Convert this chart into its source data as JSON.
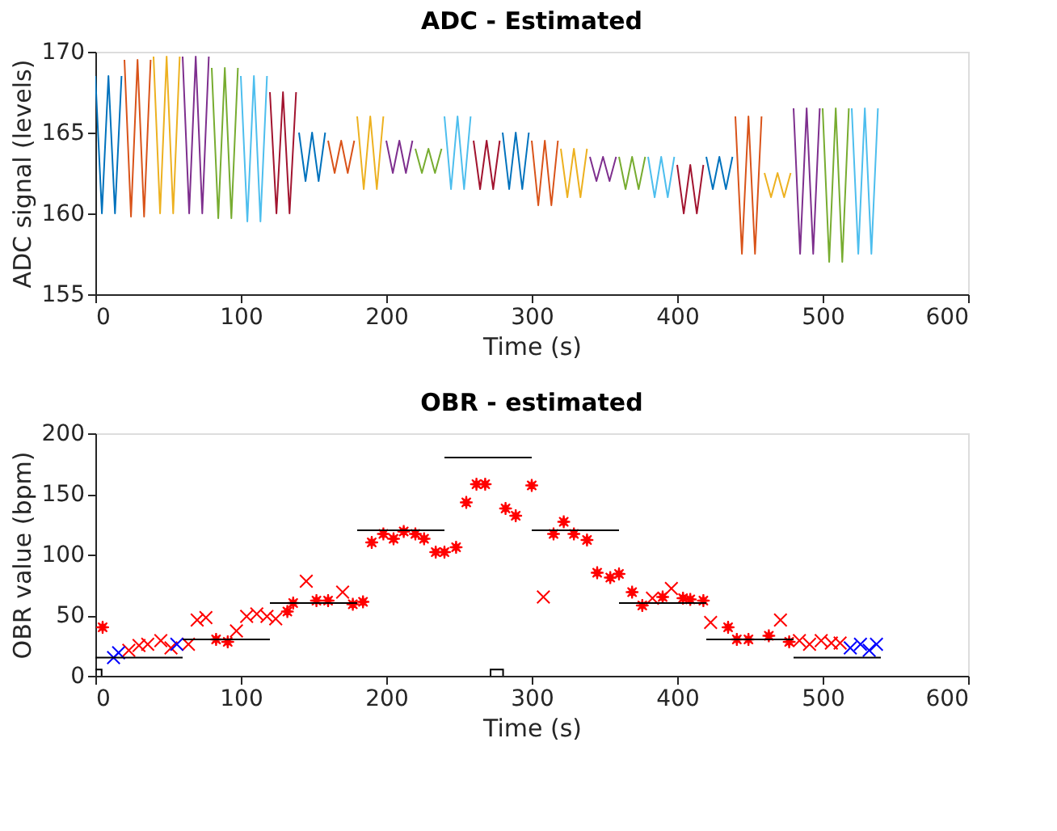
{
  "chart_data": [
    {
      "type": "line",
      "title": "ADC - Estimated",
      "xlabel": "Time (s)",
      "ylabel": "ADC signal (levels)",
      "xlim": [
        0,
        600
      ],
      "xticks": [
        0,
        100,
        200,
        300,
        400,
        500,
        600
      ],
      "ylim": [
        155,
        170
      ],
      "yticks": [
        155,
        160,
        165,
        170
      ],
      "grid": false,
      "line_style": "solid",
      "series": [
        {
          "color": "#0072bd",
          "x": [
            0,
            4.5,
            9,
            13.5,
            18
          ],
          "values": [
            168.5,
            160,
            168.5,
            160,
            168.5
          ]
        },
        {
          "color": "#d95319",
          "x": [
            20,
            24.5,
            29,
            33.5,
            38
          ],
          "values": [
            169.5,
            159.8,
            169.5,
            159.8,
            169.5
          ]
        },
        {
          "color": "#edb120",
          "x": [
            40,
            44.5,
            49,
            53.5,
            58
          ],
          "values": [
            169.7,
            160,
            169.7,
            160,
            169.7
          ]
        },
        {
          "color": "#7e2f8e",
          "x": [
            60,
            64.5,
            69,
            73.5,
            78
          ],
          "values": [
            169.7,
            160,
            169.7,
            160,
            169.7
          ]
        },
        {
          "color": "#77ac30",
          "x": [
            80,
            84.5,
            89,
            93.5,
            98
          ],
          "values": [
            169,
            159.7,
            169,
            159.7,
            169
          ]
        },
        {
          "color": "#4dbeee",
          "x": [
            100,
            104.5,
            109,
            113.5,
            118
          ],
          "values": [
            168.5,
            159.5,
            168.5,
            159.5,
            168.5
          ]
        },
        {
          "color": "#a2142f",
          "x": [
            120,
            124.5,
            129,
            133.5,
            138
          ],
          "values": [
            167.5,
            160,
            167.5,
            160,
            167.5
          ]
        },
        {
          "color": "#0072bd",
          "x": [
            140,
            144.5,
            149,
            153.5,
            158
          ],
          "values": [
            165,
            162,
            165,
            162,
            165
          ]
        },
        {
          "color": "#d95319",
          "x": [
            160,
            164.5,
            169,
            173.5,
            178
          ],
          "values": [
            164.5,
            162.5,
            164.5,
            162.5,
            164.5
          ]
        },
        {
          "color": "#edb120",
          "x": [
            180,
            184.5,
            189,
            193.5,
            198
          ],
          "values": [
            166,
            161.5,
            166,
            161.5,
            166
          ]
        },
        {
          "color": "#7e2f8e",
          "x": [
            200,
            204.5,
            209,
            213.5,
            218
          ],
          "values": [
            164.5,
            162.5,
            164.5,
            162.5,
            164.5
          ]
        },
        {
          "color": "#77ac30",
          "x": [
            220,
            224.5,
            229,
            233.5,
            238
          ],
          "values": [
            164,
            162.5,
            164,
            162.5,
            164
          ]
        },
        {
          "color": "#4dbeee",
          "x": [
            240,
            244.5,
            249,
            253.5,
            258
          ],
          "values": [
            166,
            161.5,
            166,
            161.5,
            166
          ]
        },
        {
          "color": "#a2142f",
          "x": [
            260,
            264.5,
            269,
            273.5,
            278
          ],
          "values": [
            164.5,
            161.5,
            164.5,
            161.5,
            164.5
          ]
        },
        {
          "color": "#0072bd",
          "x": [
            280,
            284.5,
            289,
            293.5,
            298
          ],
          "values": [
            165,
            161.5,
            165,
            161.5,
            165
          ]
        },
        {
          "color": "#d95319",
          "x": [
            300,
            304.5,
            309,
            313.5,
            318
          ],
          "values": [
            164.5,
            160.5,
            164.5,
            160.5,
            164.5
          ]
        },
        {
          "color": "#edb120",
          "x": [
            320,
            324.5,
            329,
            333.5,
            338
          ],
          "values": [
            164,
            161,
            164,
            161,
            164
          ]
        },
        {
          "color": "#7e2f8e",
          "x": [
            340,
            344.5,
            349,
            353.5,
            358
          ],
          "values": [
            163.5,
            162,
            163.5,
            162,
            163.5
          ]
        },
        {
          "color": "#77ac30",
          "x": [
            360,
            364.5,
            369,
            373.5,
            378
          ],
          "values": [
            163.5,
            161.5,
            163.5,
            161.5,
            163.5
          ]
        },
        {
          "color": "#4dbeee",
          "x": [
            380,
            384.5,
            389,
            393.5,
            398
          ],
          "values": [
            163.5,
            161,
            163.5,
            161,
            163.5
          ]
        },
        {
          "color": "#a2142f",
          "x": [
            400,
            404.5,
            409,
            413.5,
            418
          ],
          "values": [
            163,
            160,
            163,
            160,
            163
          ]
        },
        {
          "color": "#0072bd",
          "x": [
            420,
            424.5,
            429,
            433.5,
            438
          ],
          "values": [
            163.5,
            161.5,
            163.5,
            161.5,
            163.5
          ]
        },
        {
          "color": "#d95319",
          "x": [
            440,
            444.5,
            449,
            453.5,
            458
          ],
          "values": [
            166,
            157.5,
            166,
            157.5,
            166
          ]
        },
        {
          "color": "#edb120",
          "x": [
            460,
            464.5,
            469,
            473.5,
            478
          ],
          "values": [
            162.5,
            161,
            162.5,
            161,
            162.5
          ]
        },
        {
          "color": "#7e2f8e",
          "x": [
            480,
            484.5,
            489,
            493.5,
            498
          ],
          "values": [
            166.5,
            157.5,
            166.5,
            157.5,
            166.5
          ]
        },
        {
          "color": "#77ac30",
          "x": [
            500,
            504.5,
            509,
            513.5,
            518
          ],
          "values": [
            166.5,
            157,
            166.5,
            157,
            166.5
          ]
        },
        {
          "color": "#4dbeee",
          "x": [
            520,
            524.5,
            529,
            533.5,
            538
          ],
          "values": [
            166.5,
            157.5,
            166.5,
            157.5,
            166.5
          ]
        }
      ]
    },
    {
      "type": "scatter",
      "title": "OBR - estimated",
      "xlabel": "Time (s)",
      "ylabel": "OBR value (bpm)",
      "xlim": [
        0,
        600
      ],
      "xticks": [
        0,
        100,
        200,
        300,
        400,
        500,
        600
      ],
      "ylim": [
        0,
        200
      ],
      "yticks": [
        0,
        50,
        100,
        150,
        200
      ],
      "grid": false,
      "line_style": "solid",
      "series": [
        {
          "type": "scatter",
          "marker": "cross",
          "color": "#ff0000",
          "x": [
            23,
            30,
            36,
            45,
            52,
            64,
            70,
            76,
            97,
            104,
            111,
            118,
            124,
            145,
            170,
            308,
            383,
            396,
            423,
            471,
            484,
            491,
            499,
            506,
            512
          ],
          "values": [
            21,
            25,
            26,
            29,
            23,
            26,
            46,
            48,
            37,
            49,
            51,
            49,
            47,
            78,
            69,
            65,
            64,
            72,
            44,
            46,
            29,
            26,
            29,
            27,
            27
          ]
        },
        {
          "type": "scatter",
          "marker": "star",
          "color": "#ff0000",
          "x": [
            5,
            83,
            91,
            132,
            136,
            152,
            160,
            177,
            184,
            190,
            198,
            205,
            212,
            220,
            226,
            234,
            240,
            248,
            255,
            262,
            268,
            282,
            289,
            300,
            315,
            322,
            329,
            338,
            345,
            354,
            360,
            369,
            376,
            390,
            404,
            409,
            418,
            435,
            441,
            449,
            463,
            477
          ],
          "values": [
            40,
            30,
            28,
            53,
            60,
            62,
            62,
            59,
            61,
            110,
            117,
            113,
            119,
            117,
            113,
            102,
            102,
            106,
            143,
            158,
            158,
            138,
            132,
            157,
            117,
            127,
            117,
            112,
            85,
            81,
            84,
            69,
            58,
            65,
            64,
            63,
            62,
            40,
            30,
            30,
            33,
            28
          ]
        },
        {
          "type": "scatter",
          "marker": "cross",
          "color": "#0000ff",
          "x": [
            12.5,
            16,
            56,
            519,
            526,
            532,
            537
          ],
          "values": [
            15,
            19,
            26,
            23,
            26,
            21,
            26
          ]
        },
        {
          "type": "line",
          "color": "#000000",
          "x": [
            0,
            60
          ],
          "values": [
            15,
            15
          ]
        },
        {
          "type": "line",
          "color": "#000000",
          "x": [
            60,
            120
          ],
          "values": [
            30,
            30
          ]
        },
        {
          "type": "line",
          "color": "#000000",
          "x": [
            120,
            180
          ],
          "values": [
            60,
            60
          ]
        },
        {
          "type": "line",
          "color": "#000000",
          "x": [
            180,
            240
          ],
          "values": [
            120,
            120
          ]
        },
        {
          "type": "line",
          "color": "#000000",
          "x": [
            240,
            300
          ],
          "values": [
            180,
            180
          ]
        },
        {
          "type": "line",
          "color": "#000000",
          "x": [
            300,
            360
          ],
          "values": [
            120,
            120
          ]
        },
        {
          "type": "line",
          "color": "#000000",
          "x": [
            360,
            420
          ],
          "values": [
            60,
            60
          ]
        },
        {
          "type": "line",
          "color": "#000000",
          "x": [
            420,
            480
          ],
          "values": [
            30,
            30
          ]
        },
        {
          "type": "line",
          "color": "#000000",
          "x": [
            480,
            540
          ],
          "values": [
            15,
            15
          ]
        },
        {
          "type": "scatter",
          "marker": "square",
          "color": "#000000",
          "x": [
            0,
            276
          ],
          "values": [
            0,
            0
          ]
        }
      ]
    }
  ]
}
